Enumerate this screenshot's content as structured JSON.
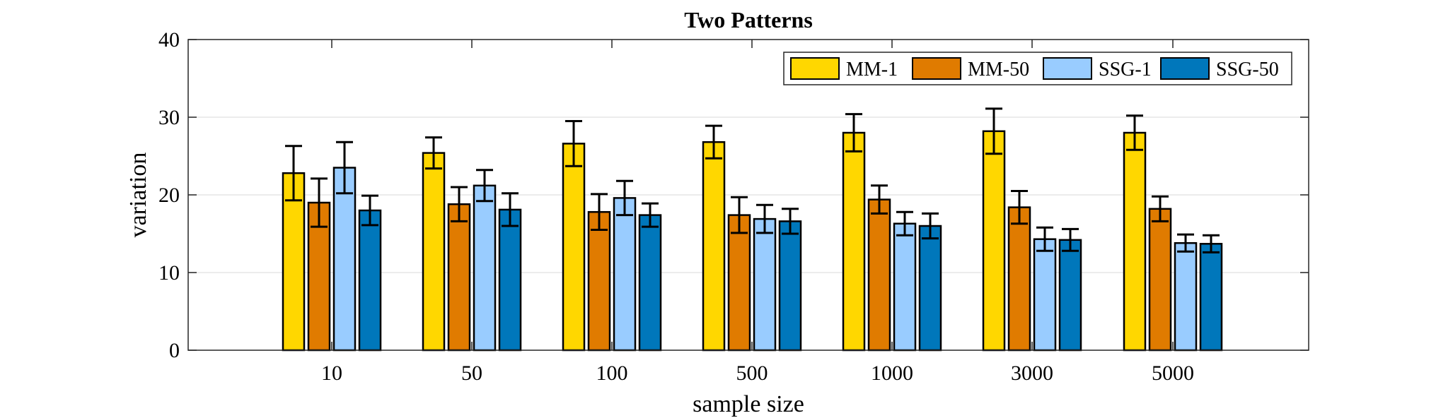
{
  "chart_data": {
    "type": "bar",
    "title": "Two Patterns",
    "xlabel": "sample size",
    "ylabel": "variation",
    "ylim": [
      0,
      40
    ],
    "yticks": [
      0,
      10,
      20,
      30,
      40
    ],
    "grid": true,
    "legend_position": "top-right",
    "categories": [
      "10",
      "50",
      "100",
      "500",
      "1000",
      "3000",
      "5000"
    ],
    "series": [
      {
        "name": "MM-1",
        "color": "#FFD700",
        "values": [
          22.8,
          25.4,
          26.6,
          26.8,
          28.0,
          28.2,
          28.0
        ],
        "errors": [
          3.5,
          2.0,
          2.9,
          2.1,
          2.4,
          2.9,
          2.2
        ]
      },
      {
        "name": "MM-50",
        "color": "#E07B00",
        "values": [
          19.0,
          18.8,
          17.8,
          17.4,
          19.4,
          18.4,
          18.2
        ],
        "errors": [
          3.1,
          2.2,
          2.3,
          2.3,
          1.8,
          2.1,
          1.6
        ]
      },
      {
        "name": "SSG-1",
        "color": "#99CCFF",
        "values": [
          23.5,
          21.2,
          19.6,
          16.9,
          16.3,
          14.3,
          13.8
        ],
        "errors": [
          3.3,
          2.0,
          2.2,
          1.8,
          1.5,
          1.5,
          1.1
        ]
      },
      {
        "name": "SSG-50",
        "color": "#0077BB",
        "values": [
          18.0,
          18.1,
          17.4,
          16.6,
          16.0,
          14.2,
          13.7
        ],
        "errors": [
          1.9,
          2.1,
          1.5,
          1.6,
          1.6,
          1.4,
          1.1
        ]
      }
    ]
  }
}
